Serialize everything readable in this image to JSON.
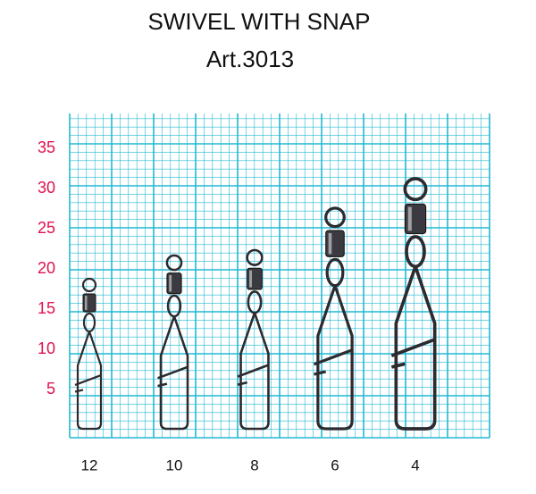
{
  "title": "SWIVEL WITH SNAP",
  "subtitle": "Art.3013",
  "scale_labels": [
    35,
    30,
    25,
    20,
    15,
    10,
    5
  ],
  "sizes": [
    12,
    10,
    8,
    6,
    4
  ]
}
